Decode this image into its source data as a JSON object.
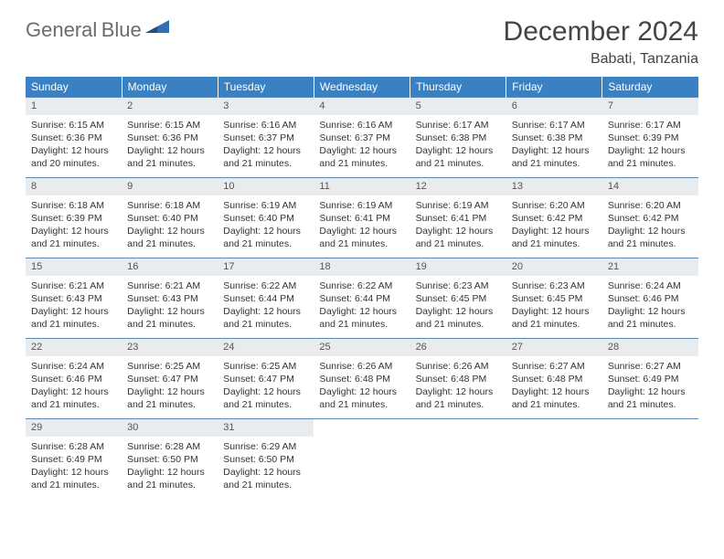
{
  "brand": {
    "word1": "General",
    "word2": "Blue"
  },
  "title": "December 2024",
  "location": "Babati, Tanzania",
  "dayHeaders": [
    "Sunday",
    "Monday",
    "Tuesday",
    "Wednesday",
    "Thursday",
    "Friday",
    "Saturday"
  ],
  "colors": {
    "headerBg": "#3a81c4",
    "headerText": "#ffffff",
    "rowBorder": "#5a89b5",
    "dayNumBg": "#e9ecef",
    "bodyText": "#333333",
    "logoGray": "#6b6b6b",
    "logoBlue": "#2f6fb0"
  },
  "weeks": [
    [
      {
        "n": "1",
        "sr": "6:15 AM",
        "ss": "6:36 PM",
        "dl": "12 hours and 20 minutes."
      },
      {
        "n": "2",
        "sr": "6:15 AM",
        "ss": "6:36 PM",
        "dl": "12 hours and 21 minutes."
      },
      {
        "n": "3",
        "sr": "6:16 AM",
        "ss": "6:37 PM",
        "dl": "12 hours and 21 minutes."
      },
      {
        "n": "4",
        "sr": "6:16 AM",
        "ss": "6:37 PM",
        "dl": "12 hours and 21 minutes."
      },
      {
        "n": "5",
        "sr": "6:17 AM",
        "ss": "6:38 PM",
        "dl": "12 hours and 21 minutes."
      },
      {
        "n": "6",
        "sr": "6:17 AM",
        "ss": "6:38 PM",
        "dl": "12 hours and 21 minutes."
      },
      {
        "n": "7",
        "sr": "6:17 AM",
        "ss": "6:39 PM",
        "dl": "12 hours and 21 minutes."
      }
    ],
    [
      {
        "n": "8",
        "sr": "6:18 AM",
        "ss": "6:39 PM",
        "dl": "12 hours and 21 minutes."
      },
      {
        "n": "9",
        "sr": "6:18 AM",
        "ss": "6:40 PM",
        "dl": "12 hours and 21 minutes."
      },
      {
        "n": "10",
        "sr": "6:19 AM",
        "ss": "6:40 PM",
        "dl": "12 hours and 21 minutes."
      },
      {
        "n": "11",
        "sr": "6:19 AM",
        "ss": "6:41 PM",
        "dl": "12 hours and 21 minutes."
      },
      {
        "n": "12",
        "sr": "6:19 AM",
        "ss": "6:41 PM",
        "dl": "12 hours and 21 minutes."
      },
      {
        "n": "13",
        "sr": "6:20 AM",
        "ss": "6:42 PM",
        "dl": "12 hours and 21 minutes."
      },
      {
        "n": "14",
        "sr": "6:20 AM",
        "ss": "6:42 PM",
        "dl": "12 hours and 21 minutes."
      }
    ],
    [
      {
        "n": "15",
        "sr": "6:21 AM",
        "ss": "6:43 PM",
        "dl": "12 hours and 21 minutes."
      },
      {
        "n": "16",
        "sr": "6:21 AM",
        "ss": "6:43 PM",
        "dl": "12 hours and 21 minutes."
      },
      {
        "n": "17",
        "sr": "6:22 AM",
        "ss": "6:44 PM",
        "dl": "12 hours and 21 minutes."
      },
      {
        "n": "18",
        "sr": "6:22 AM",
        "ss": "6:44 PM",
        "dl": "12 hours and 21 minutes."
      },
      {
        "n": "19",
        "sr": "6:23 AM",
        "ss": "6:45 PM",
        "dl": "12 hours and 21 minutes."
      },
      {
        "n": "20",
        "sr": "6:23 AM",
        "ss": "6:45 PM",
        "dl": "12 hours and 21 minutes."
      },
      {
        "n": "21",
        "sr": "6:24 AM",
        "ss": "6:46 PM",
        "dl": "12 hours and 21 minutes."
      }
    ],
    [
      {
        "n": "22",
        "sr": "6:24 AM",
        "ss": "6:46 PM",
        "dl": "12 hours and 21 minutes."
      },
      {
        "n": "23",
        "sr": "6:25 AM",
        "ss": "6:47 PM",
        "dl": "12 hours and 21 minutes."
      },
      {
        "n": "24",
        "sr": "6:25 AM",
        "ss": "6:47 PM",
        "dl": "12 hours and 21 minutes."
      },
      {
        "n": "25",
        "sr": "6:26 AM",
        "ss": "6:48 PM",
        "dl": "12 hours and 21 minutes."
      },
      {
        "n": "26",
        "sr": "6:26 AM",
        "ss": "6:48 PM",
        "dl": "12 hours and 21 minutes."
      },
      {
        "n": "27",
        "sr": "6:27 AM",
        "ss": "6:48 PM",
        "dl": "12 hours and 21 minutes."
      },
      {
        "n": "28",
        "sr": "6:27 AM",
        "ss": "6:49 PM",
        "dl": "12 hours and 21 minutes."
      }
    ],
    [
      {
        "n": "29",
        "sr": "6:28 AM",
        "ss": "6:49 PM",
        "dl": "12 hours and 21 minutes."
      },
      {
        "n": "30",
        "sr": "6:28 AM",
        "ss": "6:50 PM",
        "dl": "12 hours and 21 minutes."
      },
      {
        "n": "31",
        "sr": "6:29 AM",
        "ss": "6:50 PM",
        "dl": "12 hours and 21 minutes."
      },
      null,
      null,
      null,
      null
    ]
  ],
  "labels": {
    "sunrise": "Sunrise:",
    "sunset": "Sunset:",
    "daylight": "Daylight:"
  }
}
